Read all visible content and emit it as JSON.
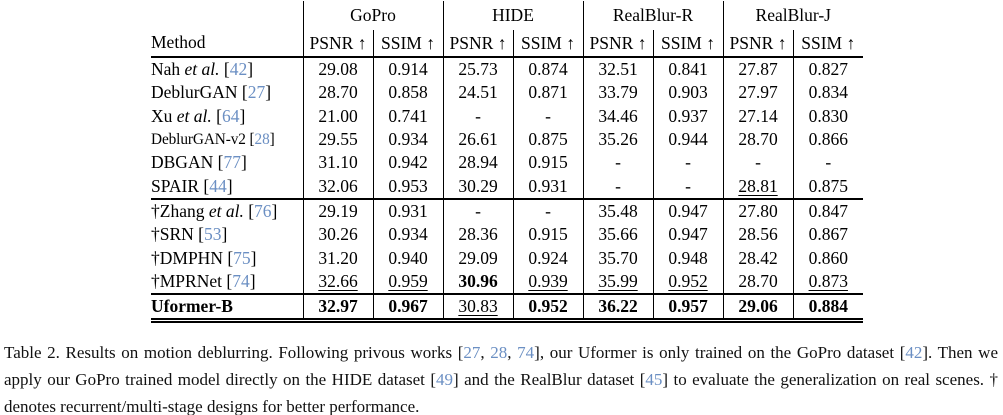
{
  "colors": {
    "citation_link": "#6b8fc3",
    "text": "#000000",
    "rule": "#000000"
  },
  "table": {
    "method_header": "Method",
    "groups": [
      "GoPro",
      "HIDE",
      "RealBlur-R",
      "RealBlur-J"
    ],
    "metric_label_psnr": "PSNR ↑",
    "metric_label_ssim": "SSIM ↑",
    "sections": [
      {
        "rows": [
          {
            "method": {
              "dagger": false,
              "name": "Nah",
              "etal": true,
              "cite": "42",
              "bold": false,
              "small": false
            },
            "values": [
              {
                "v": "29.08",
                "s": ""
              },
              {
                "v": "0.914",
                "s": ""
              },
              {
                "v": "25.73",
                "s": ""
              },
              {
                "v": "0.874",
                "s": ""
              },
              {
                "v": "32.51",
                "s": ""
              },
              {
                "v": "0.841",
                "s": ""
              },
              {
                "v": "27.87",
                "s": ""
              },
              {
                "v": "0.827",
                "s": ""
              }
            ]
          },
          {
            "method": {
              "dagger": false,
              "name": "DeblurGAN",
              "etal": false,
              "cite": "27",
              "bold": false,
              "small": false
            },
            "values": [
              {
                "v": "28.70",
                "s": ""
              },
              {
                "v": "0.858",
                "s": ""
              },
              {
                "v": "24.51",
                "s": ""
              },
              {
                "v": "0.871",
                "s": ""
              },
              {
                "v": "33.79",
                "s": ""
              },
              {
                "v": "0.903",
                "s": ""
              },
              {
                "v": "27.97",
                "s": ""
              },
              {
                "v": "0.834",
                "s": ""
              }
            ]
          },
          {
            "method": {
              "dagger": false,
              "name": "Xu",
              "etal": true,
              "cite": "64",
              "bold": false,
              "small": false
            },
            "values": [
              {
                "v": "21.00",
                "s": ""
              },
              {
                "v": "0.741",
                "s": ""
              },
              {
                "v": "-",
                "s": ""
              },
              {
                "v": "-",
                "s": ""
              },
              {
                "v": "34.46",
                "s": ""
              },
              {
                "v": "0.937",
                "s": ""
              },
              {
                "v": "27.14",
                "s": ""
              },
              {
                "v": "0.830",
                "s": ""
              }
            ]
          },
          {
            "method": {
              "dagger": false,
              "name": "DeblurGAN-v2",
              "etal": false,
              "cite": "28",
              "bold": false,
              "small": true
            },
            "values": [
              {
                "v": "29.55",
                "s": ""
              },
              {
                "v": "0.934",
                "s": ""
              },
              {
                "v": "26.61",
                "s": ""
              },
              {
                "v": "0.875",
                "s": ""
              },
              {
                "v": "35.26",
                "s": ""
              },
              {
                "v": "0.944",
                "s": ""
              },
              {
                "v": "28.70",
                "s": ""
              },
              {
                "v": "0.866",
                "s": ""
              }
            ]
          },
          {
            "method": {
              "dagger": false,
              "name": "DBGAN",
              "etal": false,
              "cite": "77",
              "bold": false,
              "small": false
            },
            "values": [
              {
                "v": "31.10",
                "s": ""
              },
              {
                "v": "0.942",
                "s": ""
              },
              {
                "v": "28.94",
                "s": ""
              },
              {
                "v": "0.915",
                "s": ""
              },
              {
                "v": "-",
                "s": ""
              },
              {
                "v": "-",
                "s": ""
              },
              {
                "v": "-",
                "s": ""
              },
              {
                "v": "-",
                "s": ""
              }
            ]
          },
          {
            "method": {
              "dagger": false,
              "name": "SPAIR",
              "etal": false,
              "cite": "44",
              "bold": false,
              "small": false
            },
            "values": [
              {
                "v": "32.06",
                "s": ""
              },
              {
                "v": "0.953",
                "s": ""
              },
              {
                "v": "30.29",
                "s": ""
              },
              {
                "v": "0.931",
                "s": ""
              },
              {
                "v": "-",
                "s": ""
              },
              {
                "v": "-",
                "s": ""
              },
              {
                "v": "28.81",
                "s": "u"
              },
              {
                "v": "0.875",
                "s": ""
              }
            ]
          }
        ]
      },
      {
        "rows": [
          {
            "method": {
              "dagger": true,
              "name": "Zhang",
              "etal": true,
              "cite": "76",
              "bold": false,
              "small": false
            },
            "values": [
              {
                "v": "29.19",
                "s": ""
              },
              {
                "v": "0.931",
                "s": ""
              },
              {
                "v": "-",
                "s": ""
              },
              {
                "v": "-",
                "s": ""
              },
              {
                "v": "35.48",
                "s": ""
              },
              {
                "v": "0.947",
                "s": ""
              },
              {
                "v": "27.80",
                "s": ""
              },
              {
                "v": "0.847",
                "s": ""
              }
            ]
          },
          {
            "method": {
              "dagger": true,
              "name": "SRN",
              "etal": false,
              "cite": "53",
              "bold": false,
              "small": false
            },
            "values": [
              {
                "v": "30.26",
                "s": ""
              },
              {
                "v": "0.934",
                "s": ""
              },
              {
                "v": "28.36",
                "s": ""
              },
              {
                "v": "0.915",
                "s": ""
              },
              {
                "v": "35.66",
                "s": ""
              },
              {
                "v": "0.947",
                "s": ""
              },
              {
                "v": "28.56",
                "s": ""
              },
              {
                "v": "0.867",
                "s": ""
              }
            ]
          },
          {
            "method": {
              "dagger": true,
              "name": "DMPHN",
              "etal": false,
              "cite": "75",
              "bold": false,
              "small": false
            },
            "values": [
              {
                "v": "31.20",
                "s": ""
              },
              {
                "v": "0.940",
                "s": ""
              },
              {
                "v": "29.09",
                "s": ""
              },
              {
                "v": "0.924",
                "s": ""
              },
              {
                "v": "35.70",
                "s": ""
              },
              {
                "v": "0.948",
                "s": ""
              },
              {
                "v": "28.42",
                "s": ""
              },
              {
                "v": "0.860",
                "s": ""
              }
            ]
          },
          {
            "method": {
              "dagger": true,
              "name": "MPRNet",
              "etal": false,
              "cite": "74",
              "bold": false,
              "small": false
            },
            "values": [
              {
                "v": "32.66",
                "s": "u"
              },
              {
                "v": "0.959",
                "s": "u"
              },
              {
                "v": "30.96",
                "s": "b"
              },
              {
                "v": "0.939",
                "s": "u"
              },
              {
                "v": "35.99",
                "s": "u"
              },
              {
                "v": "0.952",
                "s": "u"
              },
              {
                "v": "28.70",
                "s": ""
              },
              {
                "v": "0.873",
                "s": "u"
              }
            ]
          }
        ]
      },
      {
        "rows": [
          {
            "method": {
              "dagger": false,
              "name": "Uformer-B",
              "etal": false,
              "cite": null,
              "bold": true,
              "small": false
            },
            "values": [
              {
                "v": "32.97",
                "s": "b"
              },
              {
                "v": "0.967",
                "s": "b"
              },
              {
                "v": "30.83",
                "s": "u"
              },
              {
                "v": "0.952",
                "s": "b"
              },
              {
                "v": "36.22",
                "s": "b"
              },
              {
                "v": "0.957",
                "s": "b"
              },
              {
                "v": "29.06",
                "s": "b"
              },
              {
                "v": "0.884",
                "s": "b"
              }
            ]
          }
        ]
      }
    ]
  },
  "caption": {
    "segments": [
      {
        "t": "Table 2. Results on motion deblurring. Following privous works ["
      },
      {
        "c": "27"
      },
      {
        "t": ", "
      },
      {
        "c": "28"
      },
      {
        "t": ", "
      },
      {
        "c": "74"
      },
      {
        "t": "], our Uformer is only trained on the GoPro dataset ["
      },
      {
        "c": "42"
      },
      {
        "t": "]. Then we apply our GoPro trained model directly on the HIDE dataset ["
      },
      {
        "c": "49"
      },
      {
        "t": "] and the RealBlur dataset ["
      },
      {
        "c": "45"
      },
      {
        "t": "] to evaluate the generalization on real scenes. † denotes recurrent/multi-stage designs for better performance."
      }
    ]
  }
}
